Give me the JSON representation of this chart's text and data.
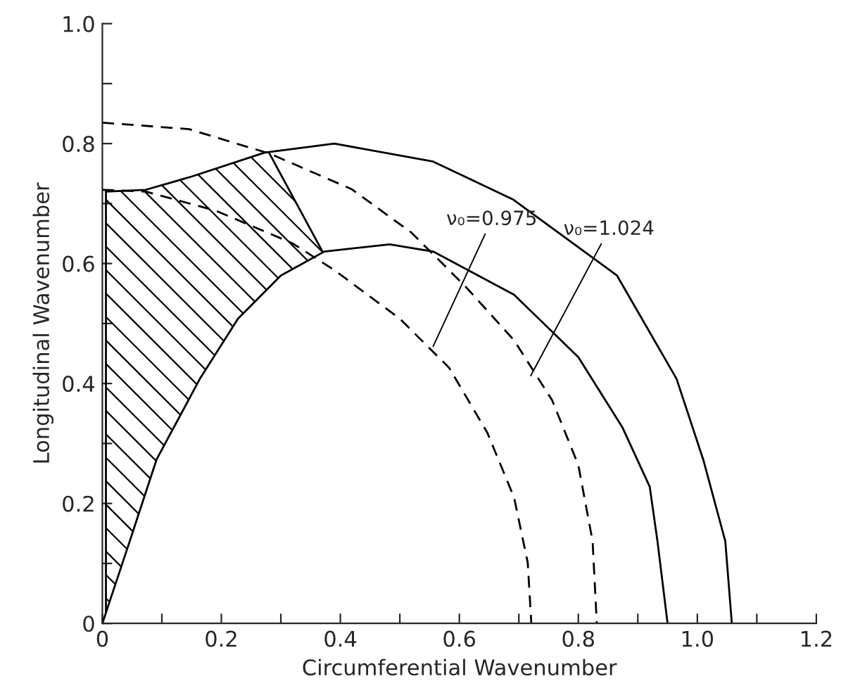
{
  "chart_data": {
    "type": "line",
    "xlabel": "Circumferential Wavenumber",
    "ylabel": "Longitudinal Wavenumber",
    "xlim": [
      0,
      1.2
    ],
    "ylim": [
      0,
      1.0
    ],
    "xticks": [
      0,
      {
        "value": 0.1,
        "label": null
      },
      0.2,
      {
        "value": 0.3,
        "label": null
      },
      0.4,
      {
        "value": 0.5,
        "label": null
      },
      0.6,
      {
        "value": 0.7,
        "label": null
      },
      0.8,
      {
        "value": 0.9,
        "label": null
      },
      {
        "value": 1.0,
        "label": "1.0"
      },
      {
        "value": 1.1,
        "label": null
      },
      1.2
    ],
    "yticks": [
      0,
      {
        "value": 0.1,
        "label": null
      },
      0.2,
      {
        "value": 0.3,
        "label": null
      },
      0.4,
      {
        "value": 0.5,
        "label": null
      },
      0.6,
      {
        "value": 0.7,
        "label": null
      },
      0.8,
      {
        "value": 0.9,
        "label": null
      },
      {
        "value": 1.0,
        "label": "1.0"
      }
    ],
    "grid": false,
    "legend": false,
    "series": [
      {
        "type": "line",
        "line_style": "solid",
        "color": "#000000",
        "x": [
          0.006,
          0.073,
          0.15,
          0.273,
          0.39,
          0.556,
          0.69,
          0.865,
          0.965,
          1.01,
          1.047,
          1.058
        ],
        "values": [
          0.72,
          0.723,
          0.745,
          0.785,
          0.8,
          0.77,
          0.707,
          0.58,
          0.408,
          0.273,
          0.137,
          0
        ]
      },
      {
        "type": "line",
        "line_style": "solid",
        "color": "#000000",
        "x": [
          0,
          0.046,
          0.091,
          0.164,
          0.228,
          0.3,
          0.373,
          0.483,
          0.556,
          0.692,
          0.8,
          0.874,
          0.92,
          0.933,
          0.95
        ],
        "values": [
          0,
          0.137,
          0.273,
          0.408,
          0.508,
          0.58,
          0.62,
          0.632,
          0.62,
          0.548,
          0.444,
          0.327,
          0.228,
          0.137,
          0
        ]
      },
      {
        "type": "line",
        "line_style": "dashed",
        "color": "#000000",
        "x": [
          0,
          0.146,
          0.282,
          0.419,
          0.519,
          0.61,
          0.692,
          0.756,
          0.8,
          0.824,
          0.831
        ],
        "values": [
          0.835,
          0.824,
          0.783,
          0.724,
          0.652,
          0.562,
          0.472,
          0.372,
          0.264,
          0.137,
          0
        ]
      },
      {
        "type": "line",
        "line_style": "dashed",
        "color": "#000000",
        "x": [
          0,
          0.073,
          0.191,
          0.319,
          0.39,
          0.5,
          0.583,
          0.647,
          0.692,
          0.715,
          0.721
        ],
        "values": [
          0.723,
          0.72,
          0.688,
          0.634,
          0.589,
          0.508,
          0.426,
          0.318,
          0.21,
          0.101,
          0
        ]
      },
      {
        "type": "line",
        "line_style": "solid",
        "color": "#000000",
        "x": [
          0.006,
          0.006
        ],
        "values": [
          0.02,
          0.72
        ]
      },
      {
        "type": "line",
        "line_style": "solid",
        "color": "#000000",
        "x": [
          0.28,
          0.37
        ],
        "values": [
          0.785,
          0.62
        ]
      }
    ],
    "annotations": [
      {
        "text": "ν₀=0.975",
        "x": 0.556,
        "y": 0.462
      },
      {
        "text": "ν₀=1.024",
        "x": 0.72,
        "y": 0.413
      }
    ]
  }
}
